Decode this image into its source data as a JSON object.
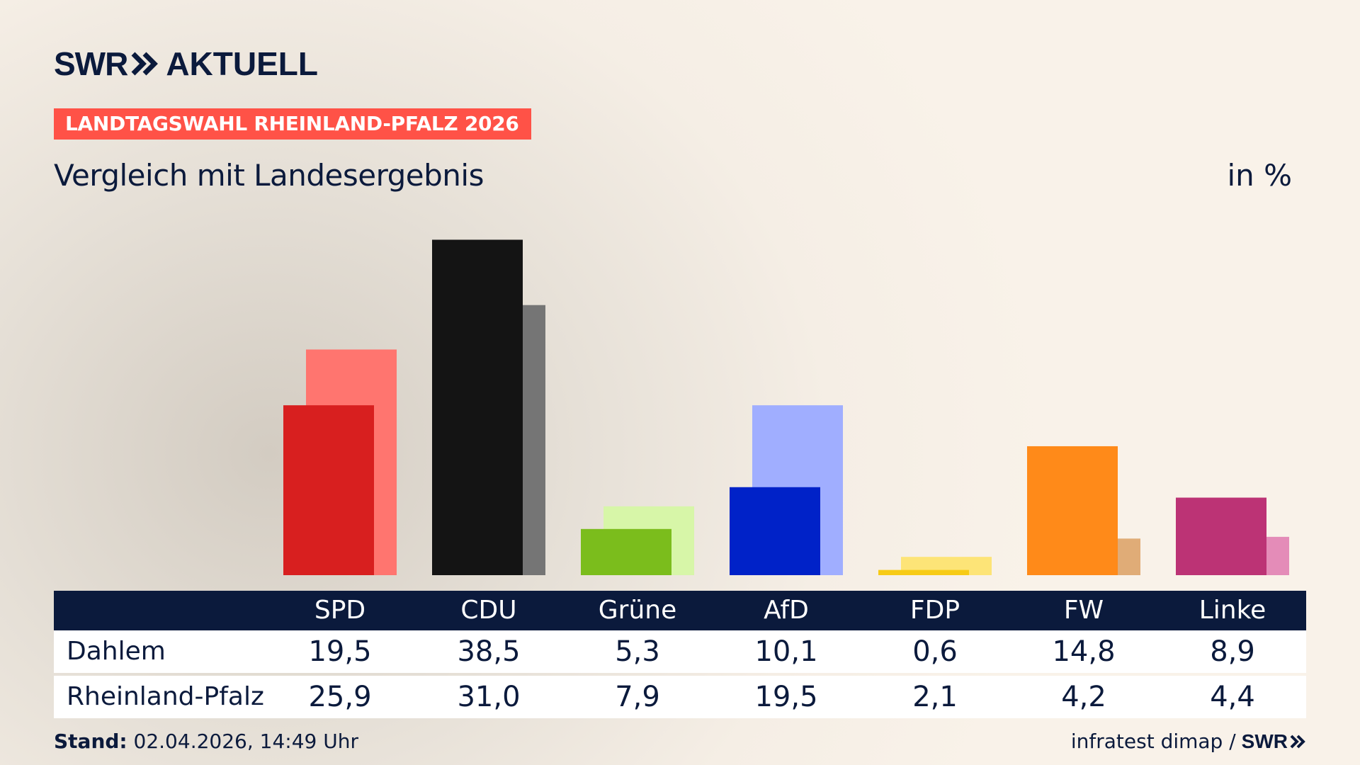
{
  "header": {
    "logo_text": "SWR",
    "logo_suffix": "AKTUELL",
    "tag": "LANDTAGSWAHL RHEINLAND-PFALZ 2026",
    "subtitle": "Vergleich mit Landesergebnis",
    "unit": "in %"
  },
  "colors": {
    "navy": "#0b1a3c",
    "tag_bg": "#ff5247"
  },
  "chart_data": {
    "type": "bar",
    "categories": [
      "SPD",
      "CDU",
      "Grüne",
      "AfD",
      "FDP",
      "FW",
      "Linke"
    ],
    "series": [
      {
        "name": "Dahlem",
        "values": [
          19.5,
          38.5,
          5.3,
          10.1,
          0.6,
          14.8,
          8.9
        ]
      },
      {
        "name": "Rheinland-Pfalz",
        "values": [
          25.9,
          31.0,
          7.9,
          19.5,
          2.1,
          4.2,
          4.4
        ]
      }
    ],
    "colors_primary": [
      "#d81f1f",
      "#141414",
      "#7bbd1c",
      "#0022c8",
      "#f7cb16",
      "#ff8a19",
      "#bc3375"
    ],
    "colors_secondary": [
      "#ff756f",
      "#757575",
      "#d7f6a8",
      "#a0aeff",
      "#fde477",
      "#e0ac77",
      "#e48cb8"
    ]
  },
  "table": {
    "headers": [
      "SPD",
      "CDU",
      "Grüne",
      "AfD",
      "FDP",
      "FW",
      "Linke"
    ],
    "rows": [
      {
        "label": "Dahlem",
        "values": [
          "19,5",
          "38,5",
          "5,3",
          "10,1",
          "0,6",
          "14,8",
          "8,9"
        ]
      },
      {
        "label": "Rheinland-Pfalz",
        "values": [
          "25,9",
          "31,0",
          "7,9",
          "19,5",
          "2,1",
          "4,2",
          "4,4"
        ]
      }
    ]
  },
  "footer": {
    "stand_label": "Stand:",
    "stand_value": "02.04.2026, 14:49 Uhr",
    "source": "infratest dimap /",
    "source_logo": "SWR"
  }
}
